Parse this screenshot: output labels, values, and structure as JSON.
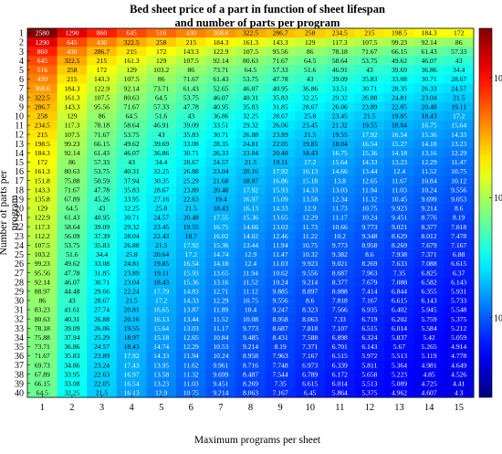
{
  "chart_data": {
    "type": "heatmap",
    "title_line1": "Bed sheet price of a part in function of sheet lifespan",
    "title_line2": "and number of parts per program",
    "xlabel": "Maximum programs per sheet",
    "ylabel": "Number of parts per\nprogram",
    "x": [
      1,
      2,
      3,
      4,
      5,
      6,
      7,
      8,
      9,
      10,
      11,
      12,
      13,
      14,
      15
    ],
    "y": [
      1,
      2,
      3,
      4,
      5,
      6,
      7,
      8,
      9,
      10,
      11,
      12,
      13,
      14,
      15,
      16,
      17,
      18,
      19,
      20,
      21,
      22,
      23,
      24,
      25,
      26,
      27,
      28,
      29,
      30,
      31,
      32,
      33,
      34,
      35,
      36,
      37,
      38,
      39,
      40
    ],
    "value_formula": "value = 2580 / (x * y)",
    "color_scale": "log",
    "colormap": "jet",
    "colorbar_range": [
      2.15,
      2580
    ],
    "colorbar_ticks": [
      {
        "value": 10,
        "label": "10¹"
      },
      {
        "value": 100,
        "label": "10²"
      },
      {
        "value": 1000,
        "label": "10³"
      }
    ]
  }
}
